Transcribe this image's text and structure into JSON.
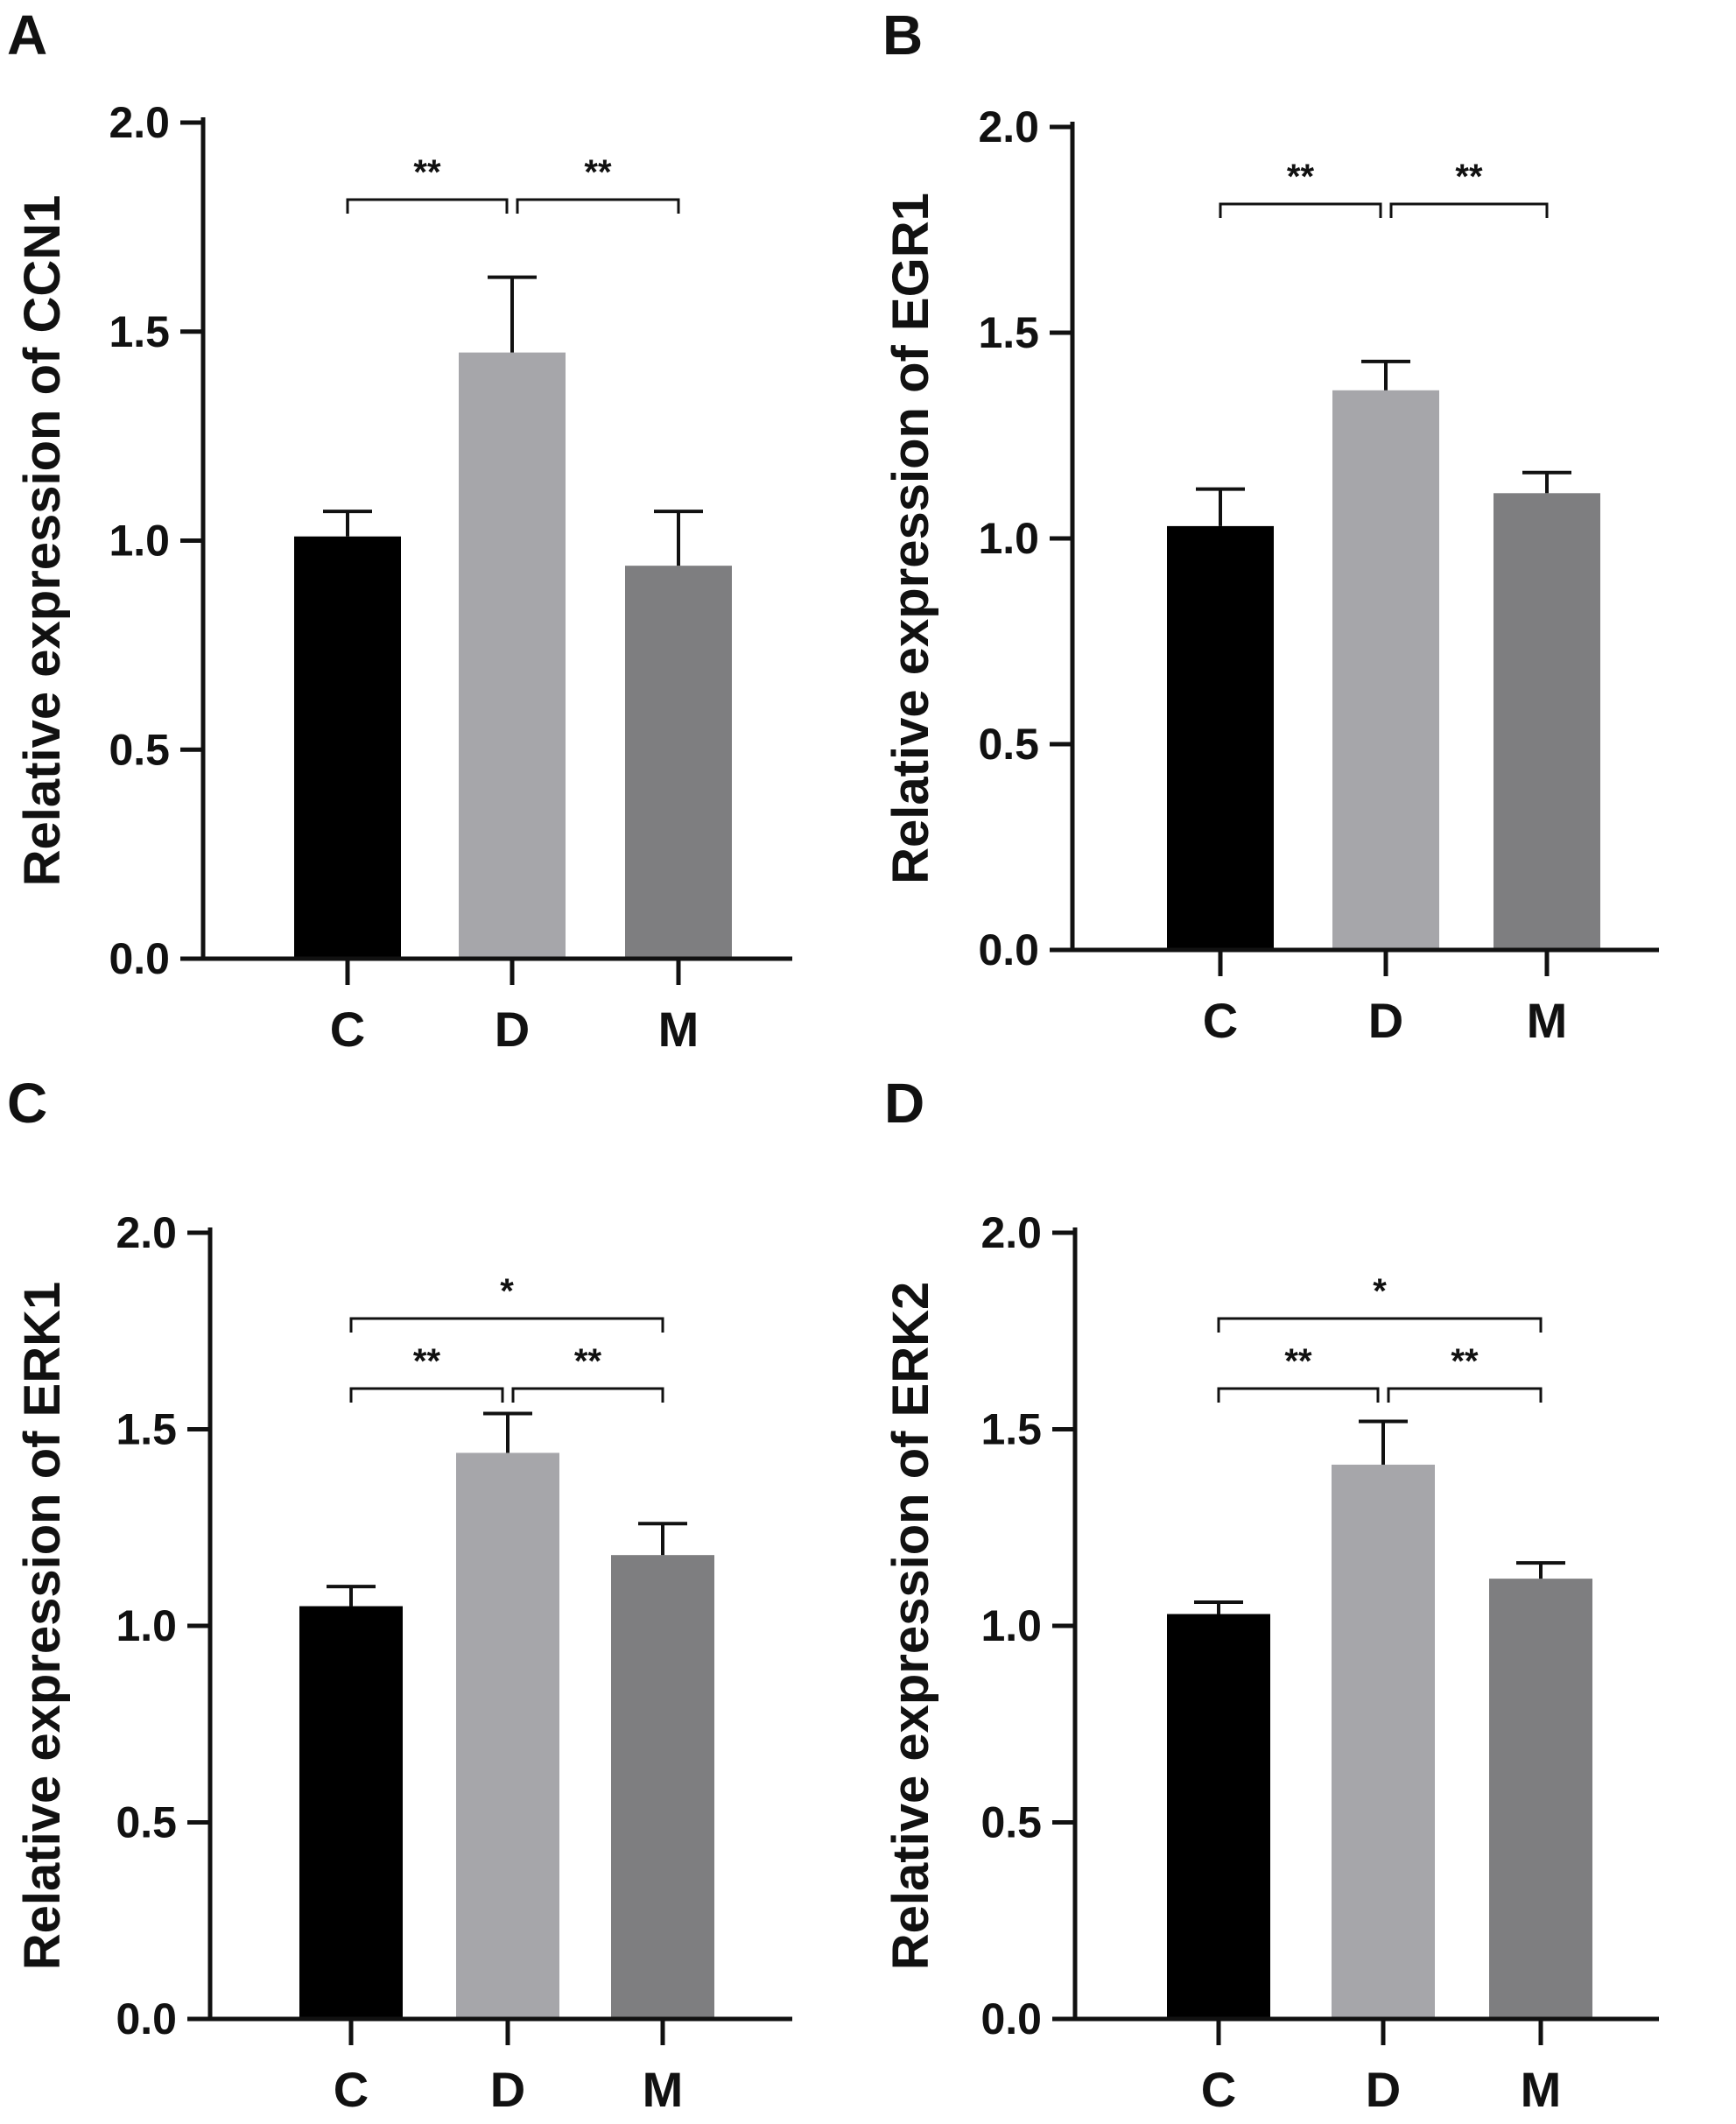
{
  "chart_data": [
    {
      "panel": "A",
      "type": "bar",
      "ylabel": "Relative expression of CCN1",
      "xlabel": "",
      "categories": [
        "C",
        "D",
        "M"
      ],
      "values": [
        1.01,
        1.45,
        0.94
      ],
      "errors": [
        0.06,
        0.18,
        0.13
      ],
      "colors": [
        "#000000",
        "#a6a6aa",
        "#7e7e80"
      ],
      "ylim": [
        0,
        2.0
      ],
      "yticks": [
        "0.0",
        "0.5",
        "1.0",
        "1.5",
        "2.0"
      ],
      "significance": [
        {
          "from": 0,
          "to": 1,
          "label": "**",
          "level": 1
        },
        {
          "from": 1,
          "to": 2,
          "label": "**",
          "level": 1
        }
      ]
    },
    {
      "panel": "B",
      "type": "bar",
      "ylabel": "Relative expression of EGR1",
      "xlabel": "",
      "categories": [
        "C",
        "D",
        "M"
      ],
      "values": [
        1.03,
        1.36,
        1.11
      ],
      "errors": [
        0.09,
        0.07,
        0.05
      ],
      "colors": [
        "#000000",
        "#a6a6aa",
        "#7e7e80"
      ],
      "ylim": [
        0,
        2.0
      ],
      "yticks": [
        "0.0",
        "0.5",
        "1.0",
        "1.5",
        "2.0"
      ],
      "significance": [
        {
          "from": 0,
          "to": 1,
          "label": "**",
          "level": 1
        },
        {
          "from": 1,
          "to": 2,
          "label": "**",
          "level": 1
        }
      ]
    },
    {
      "panel": "C",
      "type": "bar",
      "ylabel": "Relative expression of ERK1",
      "xlabel": "",
      "categories": [
        "C",
        "D",
        "M"
      ],
      "values": [
        1.05,
        1.44,
        1.18
      ],
      "errors": [
        0.05,
        0.1,
        0.08
      ],
      "colors": [
        "#000000",
        "#a6a6aa",
        "#7e7e80"
      ],
      "ylim": [
        0,
        2.0
      ],
      "yticks": [
        "0.0",
        "0.5",
        "1.0",
        "1.5",
        "2.0"
      ],
      "significance": [
        {
          "from": 0,
          "to": 1,
          "label": "**",
          "level": 1
        },
        {
          "from": 1,
          "to": 2,
          "label": "**",
          "level": 1
        },
        {
          "from": 0,
          "to": 2,
          "label": "*",
          "level": 2
        }
      ]
    },
    {
      "panel": "D",
      "type": "bar",
      "ylabel": "Relative expression of ERK2",
      "xlabel": "",
      "categories": [
        "C",
        "D",
        "M"
      ],
      "values": [
        1.03,
        1.41,
        1.12
      ],
      "errors": [
        0.03,
        0.11,
        0.04
      ],
      "colors": [
        "#000000",
        "#a6a6aa",
        "#7e7e80"
      ],
      "ylim": [
        0,
        2.0
      ],
      "yticks": [
        "0.0",
        "0.5",
        "1.0",
        "1.5",
        "2.0"
      ],
      "significance": [
        {
          "from": 0,
          "to": 1,
          "label": "**",
          "level": 1
        },
        {
          "from": 1,
          "to": 2,
          "label": "**",
          "level": 1
        },
        {
          "from": 0,
          "to": 2,
          "label": "*",
          "level": 2
        }
      ]
    }
  ]
}
